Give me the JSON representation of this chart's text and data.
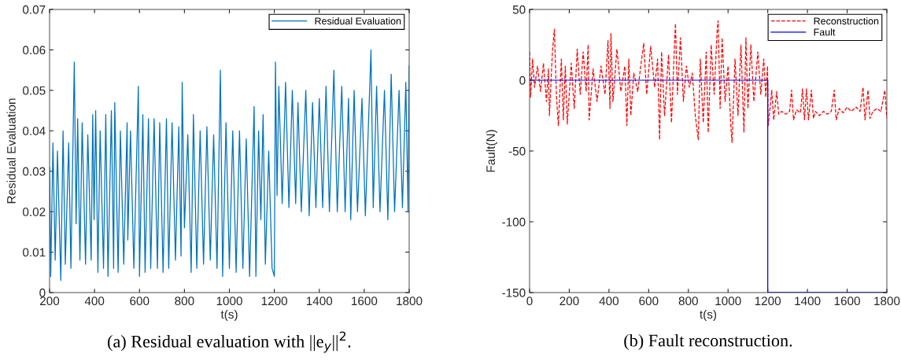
{
  "chart_data": [
    {
      "type": "line",
      "xlabel": "t(s)",
      "ylabel": "Residual Evaluation",
      "xlim": [
        200,
        1800
      ],
      "xticks": [
        200,
        400,
        600,
        800,
        1000,
        1200,
        1400,
        1600,
        1800
      ],
      "ylim": [
        0,
        0.07
      ],
      "yticks": [
        0,
        0.01,
        0.02,
        0.03,
        0.04,
        0.05,
        0.06,
        0.07
      ],
      "grid": false,
      "legend": "top right",
      "annotations": [
        "(a) Residual evaluation with ||e$_{y}$||$^{2}$."
      ],
      "series": [
        {
          "name": "Residual Evaluation",
          "color": "#0072bd",
          "line_style": "solid",
          "x": [
            200,
            205,
            215,
            225,
            235,
            250,
            260,
            270,
            285,
            295,
            310,
            318,
            325,
            335,
            345,
            360,
            370,
            385,
            392,
            398,
            405,
            415,
            425,
            440,
            450,
            460,
            475,
            485,
            490,
            505,
            515,
            530,
            545,
            548,
            560,
            575,
            595,
            600,
            615,
            625,
            640,
            650,
            665,
            680,
            690,
            705,
            720,
            730,
            745,
            760,
            775,
            785,
            790,
            800,
            815,
            830,
            840,
            855,
            870,
            885,
            900,
            915,
            930,
            945,
            960,
            970,
            985,
            1000,
            1015,
            1030,
            1045,
            1060,
            1075,
            1090,
            1110,
            1118,
            1130,
            1140,
            1150,
            1160,
            1175,
            1190,
            1200,
            1205,
            1212,
            1220,
            1235,
            1250,
            1265,
            1280,
            1295,
            1305,
            1320,
            1340,
            1355,
            1370,
            1385,
            1400,
            1415,
            1430,
            1445,
            1465,
            1480,
            1500,
            1515,
            1530,
            1540,
            1555,
            1570,
            1590,
            1605,
            1630,
            1640,
            1655,
            1670,
            1690,
            1705,
            1720,
            1735,
            1755,
            1770,
            1785,
            1795,
            1800
          ],
          "values": [
            0.031,
            0.004,
            0.037,
            0.008,
            0.035,
            0.003,
            0.04,
            0.007,
            0.037,
            0.006,
            0.057,
            0.017,
            0.043,
            0.008,
            0.042,
            0.007,
            0.039,
            0.008,
            0.044,
            0.018,
            0.045,
            0.005,
            0.04,
            0.006,
            0.044,
            0.004,
            0.045,
            0.006,
            0.047,
            0.005,
            0.04,
            0.007,
            0.042,
            0.013,
            0.04,
            0.006,
            0.051,
            0.004,
            0.044,
            0.005,
            0.043,
            0.006,
            0.043,
            0.006,
            0.042,
            0.005,
            0.043,
            0.006,
            0.042,
            0.008,
            0.041,
            0.009,
            0.052,
            0.016,
            0.039,
            0.005,
            0.044,
            0.006,
            0.04,
            0.007,
            0.041,
            0.008,
            0.039,
            0.006,
            0.055,
            0.004,
            0.042,
            0.006,
            0.04,
            0.005,
            0.04,
            0.006,
            0.038,
            0.004,
            0.046,
            0.004,
            0.04,
            0.018,
            0.044,
            0.007,
            0.035,
            0.006,
            0.004,
            0.057,
            0.024,
            0.051,
            0.022,
            0.052,
            0.021,
            0.05,
            0.022,
            0.047,
            0.02,
            0.05,
            0.019,
            0.047,
            0.021,
            0.048,
            0.021,
            0.051,
            0.02,
            0.055,
            0.02,
            0.051,
            0.02,
            0.048,
            0.018,
            0.05,
            0.02,
            0.048,
            0.019,
            0.06,
            0.021,
            0.051,
            0.02,
            0.05,
            0.018,
            0.054,
            0.02,
            0.05,
            0.021,
            0.052,
            0.02,
            0.056
          ]
        }
      ]
    },
    {
      "type": "line",
      "xlabel": "t(s)",
      "ylabel": "Fault(N)",
      "xlim": [
        0,
        1800
      ],
      "xticks": [
        0,
        200,
        400,
        600,
        800,
        1000,
        1200,
        1400,
        1600,
        1800
      ],
      "ylim": [
        -150,
        50
      ],
      "yticks": [
        -150,
        -100,
        -50,
        0,
        50
      ],
      "grid": false,
      "legend": "top right",
      "annotations": [
        "(b) Fault reconstruction."
      ],
      "series": [
        {
          "name": "Reconstruction",
          "color": "#ff0000",
          "line_style": "dashed",
          "x": [
            0,
            5,
            15,
            25,
            40,
            55,
            70,
            85,
            95,
            100,
            115,
            125,
            135,
            145,
            160,
            170,
            180,
            190,
            210,
            225,
            240,
            255,
            270,
            285,
            295,
            300,
            320,
            340,
            360,
            380,
            395,
            405,
            410,
            420,
            440,
            460,
            480,
            490,
            500,
            510,
            525,
            545,
            560,
            575,
            590,
            610,
            630,
            645,
            655,
            665,
            680,
            700,
            715,
            730,
            735,
            745,
            760,
            775,
            790,
            805,
            820,
            835,
            850,
            860,
            875,
            890,
            900,
            915,
            930,
            945,
            950,
            960,
            970,
            985,
            1000,
            1015,
            1020,
            1035,
            1050,
            1065,
            1080,
            1090,
            1100,
            1115,
            1130,
            1150,
            1165,
            1180,
            1190,
            1199,
            1202,
            1210,
            1220,
            1230,
            1245,
            1255,
            1270,
            1290,
            1310,
            1320,
            1330,
            1345,
            1365,
            1375,
            1385,
            1395,
            1405,
            1420,
            1430,
            1440,
            1460,
            1480,
            1500,
            1520,
            1535,
            1545,
            1560,
            1580,
            1600,
            1620,
            1645,
            1665,
            1680,
            1690,
            1705,
            1715,
            1730,
            1750,
            1770,
            1790,
            1800
          ],
          "values": [
            20,
            -12,
            15,
            -5,
            10,
            -8,
            12,
            -15,
            8,
            -25,
            20,
            36,
            -10,
            -32,
            15,
            -28,
            10,
            -31,
            12,
            -20,
            22,
            -10,
            20,
            -8,
            25,
            -28,
            8,
            -15,
            10,
            -10,
            28,
            -20,
            33,
            -15,
            22,
            -8,
            10,
            -32,
            15,
            -25,
            5,
            -8,
            10,
            26,
            -10,
            24,
            -5,
            15,
            -42,
            20,
            -25,
            18,
            -30,
            25,
            40,
            -10,
            30,
            -15,
            10,
            -5,
            5,
            -25,
            -42,
            15,
            -30,
            20,
            -37,
            25,
            -10,
            35,
            42,
            -20,
            30,
            -15,
            10,
            -35,
            -44,
            15,
            -25,
            25,
            -37,
            30,
            -20,
            25,
            -15,
            20,
            -10,
            15,
            -12,
            10,
            -32,
            -22,
            -7,
            -28,
            -8,
            -24,
            -22,
            -24,
            -22,
            -7,
            -28,
            -21,
            -23,
            -6,
            -28,
            -6,
            -28,
            -7,
            -27,
            -22,
            -25,
            -22,
            -24,
            -22,
            -7,
            -28,
            -20,
            -23,
            -19,
            -22,
            -19,
            -22,
            -5,
            -28,
            -7,
            -27,
            -22,
            -20,
            -22,
            -7,
            -27
          ]
        },
        {
          "name": "Fault",
          "color": "#0000ff",
          "line_style": "solid",
          "x": [
            0,
            1200,
            1200,
            1800
          ],
          "values": [
            0,
            0,
            -150,
            -150
          ]
        }
      ]
    }
  ]
}
